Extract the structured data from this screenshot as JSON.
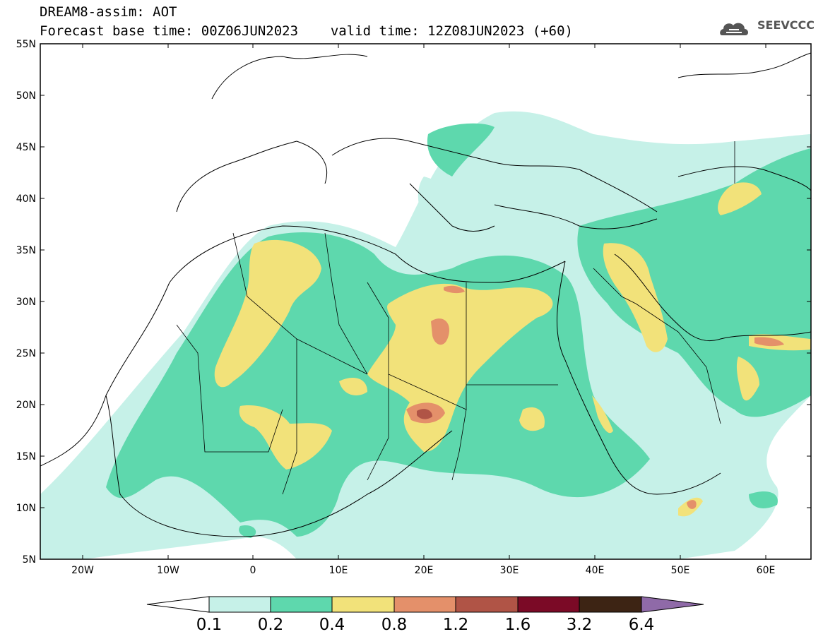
{
  "header": {
    "title_line1": "DREAM8-assim: AOT",
    "forecast_base": "Forecast base time: 00Z06JUN2023",
    "valid_time": "valid time: 12Z08JUN2023 (+60)",
    "logo_text": "SEEVCCC"
  },
  "axes": {
    "lat_ticks": [
      "55N",
      "50N",
      "45N",
      "40N",
      "35N",
      "30N",
      "25N",
      "20N",
      "15N",
      "10N",
      "5N"
    ],
    "lon_ticks": [
      "20W",
      "10W",
      "0",
      "10E",
      "20E",
      "30E",
      "40E",
      "50E",
      "60E"
    ]
  },
  "colorbar": {
    "levels": [
      "0.1",
      "0.2",
      "0.4",
      "0.8",
      "1.2",
      "1.6",
      "3.2",
      "6.4"
    ],
    "colors": [
      "#ffffff",
      "#c6f1e8",
      "#5ed8ad",
      "#f2e27a",
      "#e4906a",
      "#b05446",
      "#7b0a26",
      "#3d2414",
      "#8f6aa8"
    ]
  },
  "legend_colors": {
    "aot_0_1": "#c6f1e8",
    "aot_0_2": "#5ed8ad",
    "aot_0_4": "#f2e27a",
    "aot_0_8": "#e4906a",
    "aot_1_2": "#b05446",
    "aot_1_6": "#7b0a26"
  }
}
